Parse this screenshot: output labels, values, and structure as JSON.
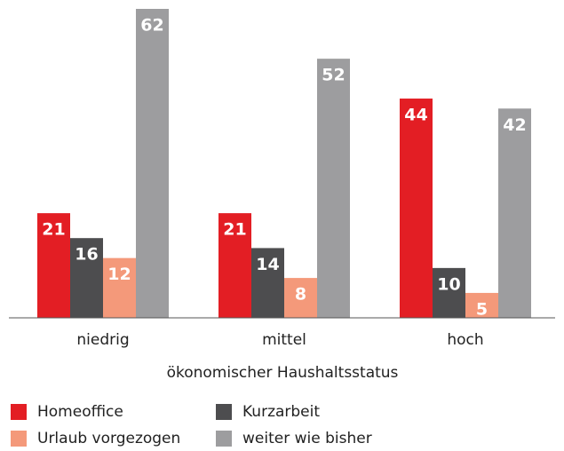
{
  "chart_data": {
    "type": "bar",
    "x_label": "ökonomischer Haushaltsstatus",
    "categories": [
      "niedrig",
      "mittel",
      "hoch"
    ],
    "series": [
      {
        "name": "Homeoffice",
        "color": "#e31e24",
        "values": [
          21,
          21,
          44
        ]
      },
      {
        "name": "Kurzarbeit",
        "color": "#4d4d4f",
        "values": [
          16,
          14,
          10
        ]
      },
      {
        "name": "Urlaub vorgezogen",
        "color": "#f4997a",
        "values": [
          12,
          8,
          5
        ]
      },
      {
        "name": "weiter wie bisher",
        "color": "#9d9d9f",
        "values": [
          62,
          52,
          42
        ]
      }
    ],
    "ylim": [
      0,
      62
    ]
  }
}
